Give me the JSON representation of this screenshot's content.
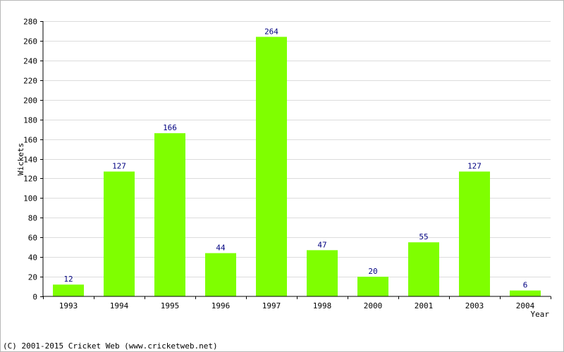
{
  "chart_data": {
    "type": "bar",
    "categories": [
      "1993",
      "1994",
      "1995",
      "1996",
      "1997",
      "1998",
      "2000",
      "2001",
      "2003",
      "2004"
    ],
    "values": [
      12,
      127,
      166,
      44,
      264,
      47,
      20,
      55,
      127,
      6
    ],
    "xlabel": "Year",
    "ylabel": "Wickets",
    "ylim": [
      0,
      280
    ],
    "yticks": [
      0,
      20,
      40,
      60,
      80,
      100,
      120,
      140,
      160,
      180,
      200,
      220,
      240,
      260,
      280
    ],
    "grid": true,
    "bar_color": "#7fff00",
    "label_color": "#000080"
  },
  "footer": {
    "copyright": "(C) 2001-2015 Cricket Web (www.cricketweb.net)"
  }
}
